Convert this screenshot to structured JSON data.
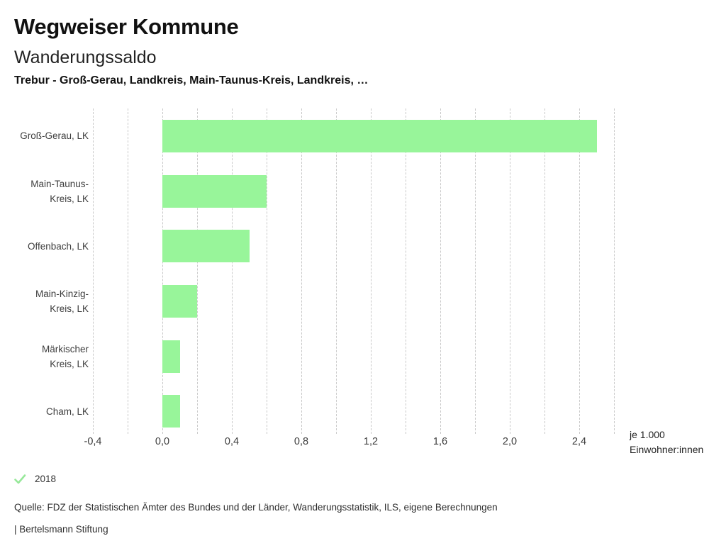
{
  "header": {
    "title": "Wegweiser Kommune",
    "subtitle": "Wanderungssaldo",
    "filter_line": "Trebur - Groß-Gerau, Landkreis, Main-Taunus-Kreis, Landkreis, …"
  },
  "chart_data": {
    "type": "bar",
    "orientation": "horizontal",
    "title": "Wanderungssaldo",
    "categories": [
      "Groß-Gerau, LK",
      "Main-Taunus-Kreis, LK",
      "Offenbach, LK",
      "Main-Kinzig-Kreis, LK",
      "Märkischer Kreis, LK",
      "Cham, LK"
    ],
    "category_label_lines": [
      [
        "Groß-Gerau, LK"
      ],
      [
        "Main-Taunus-",
        "Kreis, LK"
      ],
      [
        "Offenbach, LK"
      ],
      [
        "Main-Kinzig-",
        "Kreis, LK"
      ],
      [
        "Märkischer",
        "Kreis, LK"
      ],
      [
        "Cham, LK"
      ]
    ],
    "series": [
      {
        "name": "2018",
        "values": [
          2.5,
          0.6,
          0.5,
          0.2,
          0.1,
          0.1
        ]
      }
    ],
    "xlim": [
      -0.4,
      2.6
    ],
    "grid": true,
    "grid_step": 0.2,
    "x_ticks": [
      -0.4,
      0.0,
      0.4,
      0.8,
      1.2,
      1.6,
      2.0,
      2.4
    ],
    "x_tick_labels": [
      "-0,4",
      "0,0",
      "0,4",
      "0,8",
      "1,2",
      "1,6",
      "2,0",
      "2,4"
    ],
    "unit_label_lines": [
      "je 1.000",
      "Einwohner:innen"
    ],
    "bar_color": "#98f59a",
    "gridline_color": "#c9c9c9"
  },
  "legend": {
    "year": "2018",
    "check_color": "#97e89a"
  },
  "footer": {
    "source": "Quelle: FDZ der Statistischen Ämter des Bundes und der Länder, Wanderungsstatistik, ILS, eigene Berechnungen",
    "branding": "| Bertelsmann Stiftung"
  }
}
